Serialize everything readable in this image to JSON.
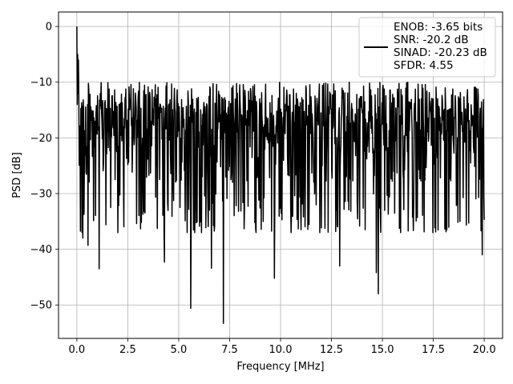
{
  "chart_data": {
    "type": "line",
    "xlabel": "Frequency [MHz]",
    "ylabel": "PSD [dB]",
    "xlim": [
      -0.9,
      20.9
    ],
    "ylim": [
      -56,
      2.6
    ],
    "xticks": [
      0.0,
      2.5,
      5.0,
      7.5,
      10.0,
      12.5,
      15.0,
      17.5,
      20.0
    ],
    "xtick_labels": [
      "0.0",
      "2.5",
      "5.0",
      "7.5",
      "10.0",
      "12.5",
      "15.0",
      "17.5",
      "20.0"
    ],
    "yticks": [
      0,
      -10,
      -20,
      -30,
      -40,
      -50
    ],
    "ytick_labels": [
      "0",
      "−10",
      "−20",
      "−30",
      "−40",
      "−50"
    ],
    "grid": true,
    "legend_position": "top-right",
    "legend": [
      "ENOB: -3.65 bits",
      "SNR: -20.2 dB",
      "SINAD: -20.23 dB",
      "SFDR: 4.55"
    ],
    "series": [
      {
        "color": "#000000",
        "x_range": [
          0,
          20
        ],
        "num_points": 1024,
        "peak": {
          "x": 0.0,
          "y": 0.0
        },
        "baseline_db": -20,
        "upper_envelope_db": -10,
        "lower_envelope_db": -30,
        "deep_nulls": [
          {
            "x": 0.3,
            "y": -38
          },
          {
            "x": 0.55,
            "y": -39.3
          },
          {
            "x": 1.1,
            "y": -43.5
          },
          {
            "x": 4.3,
            "y": -42.3
          },
          {
            "x": 5.6,
            "y": -50.6
          },
          {
            "x": 6.6,
            "y": -43.4
          },
          {
            "x": 7.2,
            "y": -53.3
          },
          {
            "x": 9.7,
            "y": -45.2
          },
          {
            "x": 12.9,
            "y": -43
          },
          {
            "x": 14.7,
            "y": -44.2
          },
          {
            "x": 14.8,
            "y": -48
          },
          {
            "x": 19.9,
            "y": -41
          }
        ]
      }
    ]
  }
}
